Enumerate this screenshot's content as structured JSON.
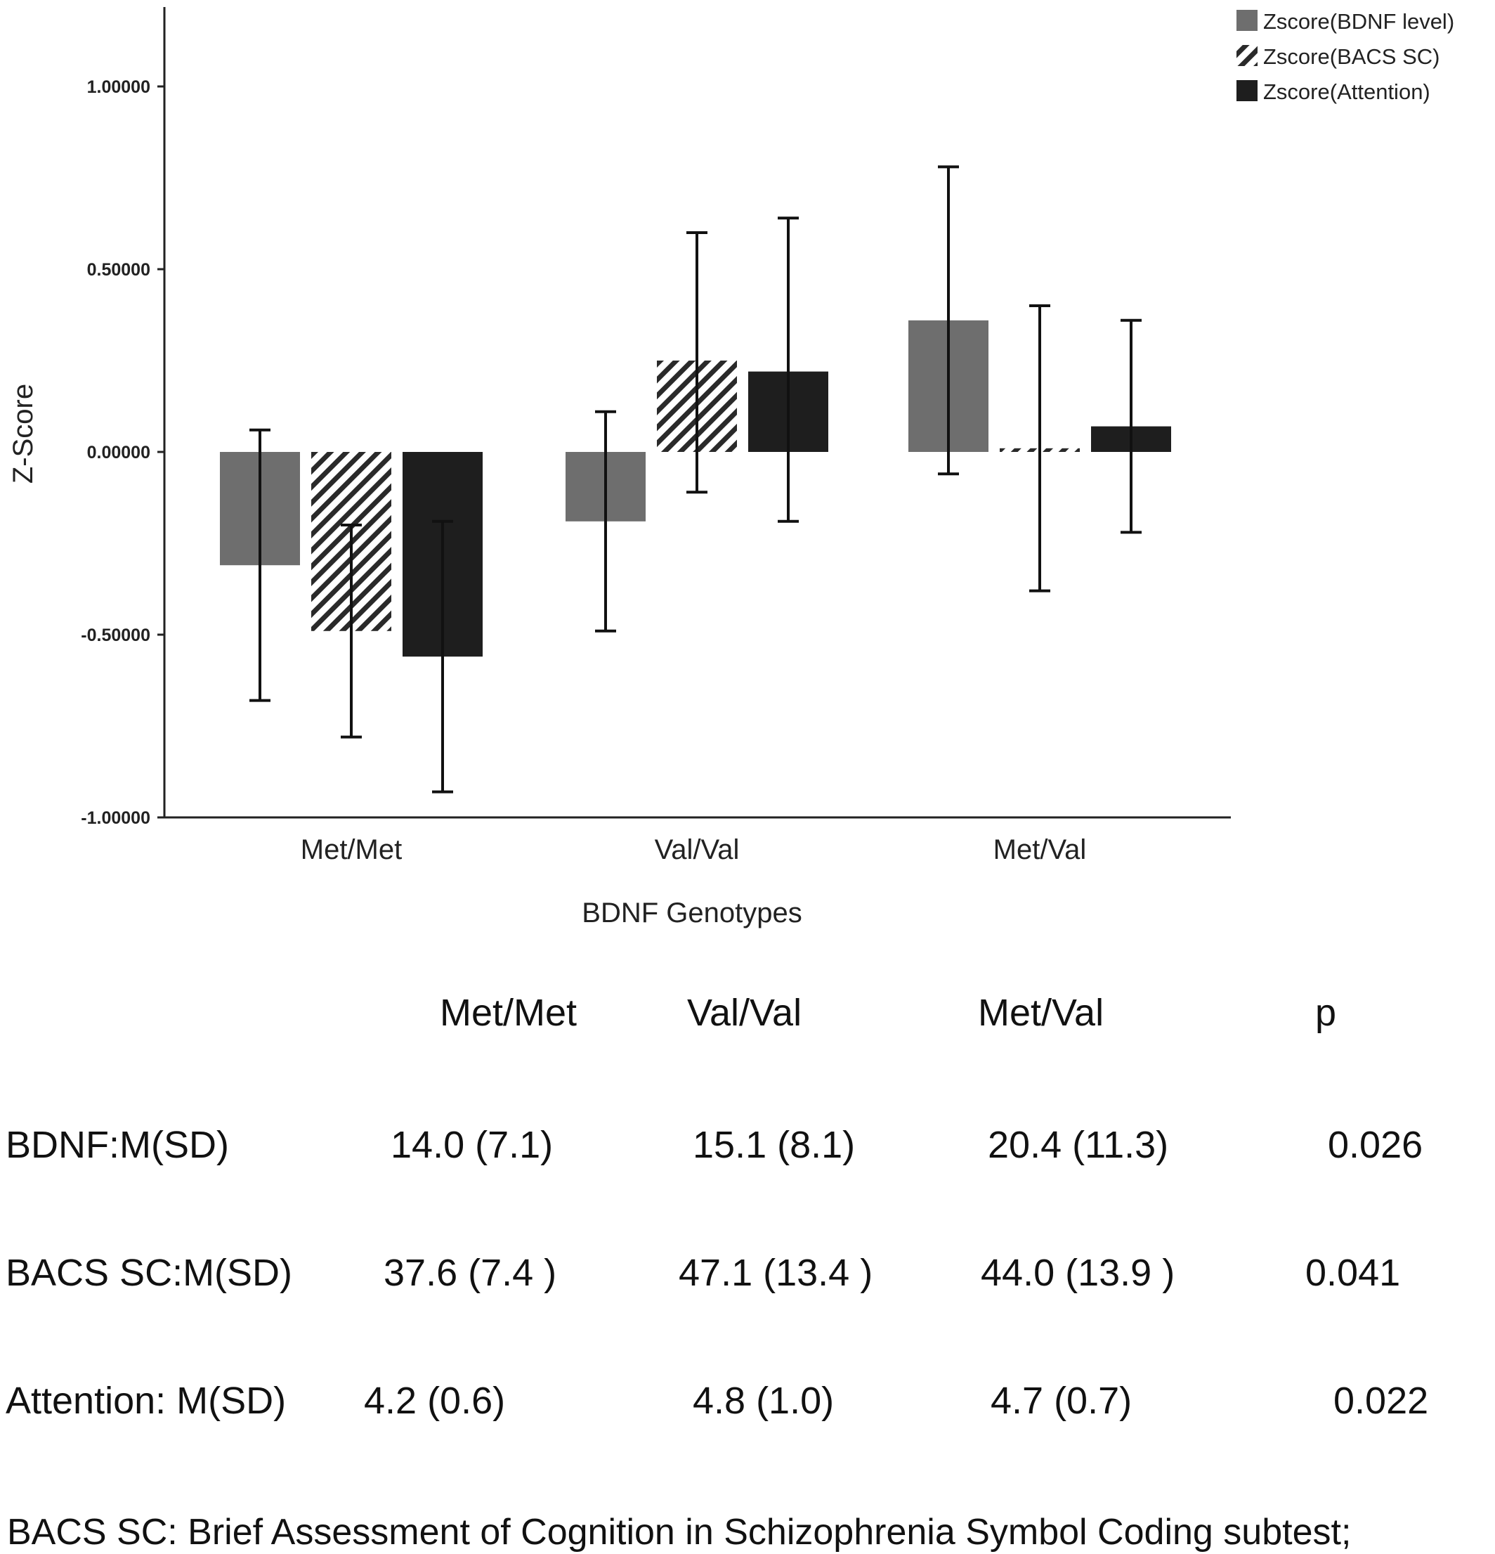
{
  "chart_data": {
    "type": "bar",
    "xlabel": "BDNF Genotypes",
    "ylabel": "Z-Score",
    "ylim": [
      -1.0,
      1.2
    ],
    "yticks": [
      1.0,
      0.5,
      0.0,
      -0.5,
      -1.0
    ],
    "ytick_labels": [
      "1.00000",
      "0.50000",
      "0.00000",
      "-0.50000",
      "-1.00000"
    ],
    "categories": [
      "Met/Met",
      "Val/Val",
      "Met/Val"
    ],
    "series": [
      {
        "name": "Zscore(BDNF level)",
        "pattern": "solid",
        "color": "#6e6e6e",
        "values": [
          -0.31,
          -0.19,
          0.36
        ],
        "err_low": [
          -0.68,
          -0.49,
          -0.06
        ],
        "err_high": [
          0.06,
          0.11,
          0.78
        ]
      },
      {
        "name": "Zscore(BACS SC)",
        "pattern": "hatched",
        "color": "#2a2a2a",
        "values": [
          -0.49,
          0.25,
          0.01
        ],
        "err_low": [
          -0.78,
          -0.11,
          -0.38
        ],
        "err_high": [
          -0.2,
          0.6,
          0.4
        ]
      },
      {
        "name": "Zscore(Attention)",
        "pattern": "solid",
        "color": "#1e1e1e",
        "values": [
          -0.56,
          0.22,
          0.07
        ],
        "err_low": [
          -0.93,
          -0.19,
          -0.22
        ],
        "err_high": [
          -0.19,
          0.64,
          0.36
        ]
      }
    ],
    "legend_position": "top-right",
    "grid": false
  },
  "table": {
    "headers": [
      "Met/Met",
      "Val/Val",
      "Met/Val",
      "p"
    ],
    "rows": [
      {
        "label": "BDNF:M(SD)",
        "cells": [
          "14.0 (7.1)",
          "15.1 (8.1)",
          "20.4 (11.3)",
          "0.026"
        ]
      },
      {
        "label": "BACS SC:M(SD)",
        "cells": [
          "37.6 (7.4 )",
          "47.1 (13.4 )",
          "44.0 (13.9 )",
          "0.041"
        ]
      },
      {
        "label": "Attention: M(SD)",
        "cells": [
          "4.2 (0.6)",
          "4.8 (1.0)",
          "4.7 (0.7)",
          "0.022"
        ]
      }
    ]
  },
  "footnote": "BACS SC: Brief Assessment of Cognition in Schizophrenia Symbol Coding subtest;"
}
